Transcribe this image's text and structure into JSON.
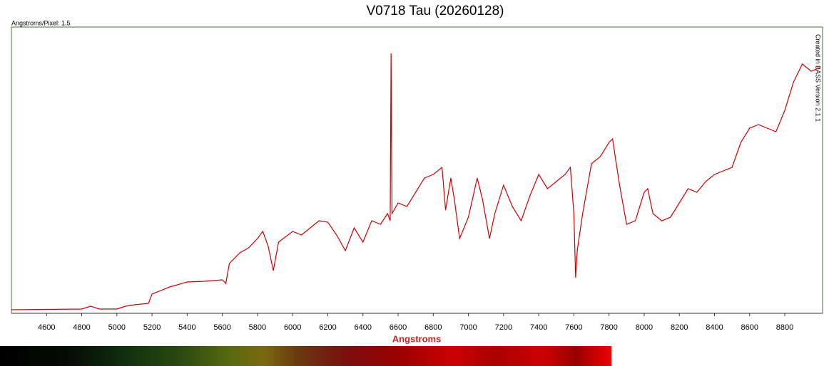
{
  "chart_data": {
    "type": "line",
    "title": "V0718 Tau (20260128)",
    "subtitle": "Angstroms/Pixel: 1.5",
    "annotation": "Created in BASS Version 2.1.1",
    "x_label": "Angstroms",
    "xlim": [
      4400,
      9015
    ],
    "ylim": [
      0,
      402
    ],
    "xticks": [
      4600,
      4800,
      5000,
      5200,
      5400,
      5600,
      5800,
      6000,
      6200,
      6400,
      6600,
      6800,
      7000,
      7200,
      7400,
      7600,
      7800,
      8000,
      8200,
      8400,
      8600,
      8800
    ],
    "grid": false,
    "x": [
      4400,
      4800,
      4850,
      4900,
      5000,
      5050,
      5100,
      5180,
      5200,
      5300,
      5400,
      5500,
      5600,
      5620,
      5640,
      5700,
      5750,
      5800,
      5830,
      5860,
      5890,
      5920,
      6000,
      6050,
      6100,
      6150,
      6200,
      6250,
      6300,
      6350,
      6400,
      6450,
      6500,
      6540,
      6555,
      6560,
      6565,
      6600,
      6650,
      6700,
      6750,
      6800,
      6850,
      6870,
      6900,
      6920,
      6950,
      7000,
      7050,
      7080,
      7120,
      7150,
      7200,
      7250,
      7300,
      7350,
      7400,
      7450,
      7500,
      7550,
      7580,
      7600,
      7610,
      7620,
      7650,
      7700,
      7750,
      7800,
      7820,
      7860,
      7900,
      7950,
      8000,
      8020,
      8050,
      8100,
      8150,
      8200,
      8250,
      8300,
      8350,
      8400,
      8450,
      8500,
      8550,
      8600,
      8650,
      8700,
      8750,
      8800,
      8850,
      8900,
      8950,
      9000
    ],
    "series": [
      {
        "name": "V0718 Tau",
        "color": "#cc0000",
        "values": [
          5,
          6,
          10,
          6,
          6,
          10,
          12,
          14,
          27,
          37,
          44,
          45,
          47,
          42,
          70,
          85,
          92,
          105,
          115,
          95,
          60,
          100,
          115,
          110,
          120,
          130,
          128,
          110,
          88,
          120,
          100,
          130,
          125,
          140,
          130,
          365,
          140,
          155,
          150,
          170,
          190,
          195,
          205,
          145,
          190,
          160,
          105,
          135,
          190,
          160,
          105,
          140,
          180,
          150,
          130,
          165,
          195,
          175,
          185,
          195,
          205,
          140,
          50,
          90,
          140,
          210,
          220,
          240,
          245,
          180,
          125,
          130,
          170,
          175,
          140,
          130,
          135,
          155,
          175,
          170,
          185,
          195,
          200,
          205,
          240,
          260,
          265,
          260,
          255,
          285,
          325,
          350,
          340,
          345
        ]
      }
    ]
  }
}
